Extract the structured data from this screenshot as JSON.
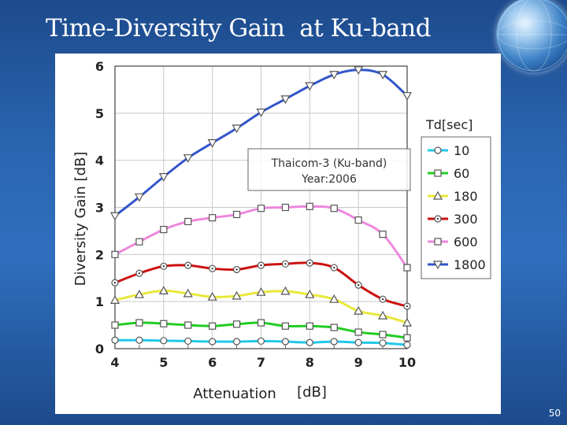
{
  "slide": {
    "title": "Time-Diversity Gain  at Ku-band",
    "page_number": "50"
  },
  "colors": {
    "background": "#2a65b0",
    "title_text": "#ffffff"
  },
  "chart_data": {
    "type": "line",
    "xlabel": "Attenuation",
    "xunit": "[dB]",
    "ylabel": "Diversity Gain  [dB]",
    "xlim": [
      4,
      10
    ],
    "ylim": [
      0,
      6
    ],
    "xticks": [
      4,
      5,
      6,
      7,
      8,
      9,
      10
    ],
    "yticks": [
      0,
      1,
      2,
      3,
      4,
      5,
      6
    ],
    "grid": true,
    "annotation": [
      "Thaicom-3 (Ku-band)",
      "Year:2006"
    ],
    "legend_title": "Td[sec]",
    "legend_position": "right",
    "x": [
      4,
      4.5,
      5,
      5.5,
      6,
      6.5,
      7,
      7.5,
      8,
      8.5,
      9,
      9.5,
      10
    ],
    "series": [
      {
        "name": "10",
        "color": "#22c8e8",
        "marker": "circle",
        "values": [
          0.18,
          0.18,
          0.17,
          0.16,
          0.15,
          0.15,
          0.16,
          0.15,
          0.13,
          0.15,
          0.13,
          0.12,
          0.08
        ]
      },
      {
        "name": "60",
        "color": "#22cc22",
        "marker": "square",
        "values": [
          0.5,
          0.55,
          0.53,
          0.5,
          0.48,
          0.52,
          0.55,
          0.48,
          0.48,
          0.45,
          0.35,
          0.3,
          0.23
        ]
      },
      {
        "name": "180",
        "color": "#e8e83a",
        "marker": "triangle-up",
        "values": [
          1.03,
          1.15,
          1.23,
          1.17,
          1.1,
          1.12,
          1.2,
          1.22,
          1.15,
          1.05,
          0.8,
          0.7,
          0.55
        ]
      },
      {
        "name": "300",
        "color": "#cc1111",
        "marker": "circle-dot",
        "values": [
          1.4,
          1.6,
          1.75,
          1.77,
          1.7,
          1.68,
          1.77,
          1.8,
          1.82,
          1.72,
          1.35,
          1.05,
          0.9
        ]
      },
      {
        "name": "600",
        "color": "#ee88dd",
        "marker": "square",
        "values": [
          2.0,
          2.27,
          2.53,
          2.7,
          2.78,
          2.85,
          2.98,
          3.0,
          3.02,
          2.98,
          2.73,
          2.43,
          1.72
        ]
      },
      {
        "name": "1800",
        "color": "#3355cc",
        "marker": "triangle-down",
        "values": [
          2.82,
          3.22,
          3.65,
          4.05,
          4.37,
          4.68,
          5.02,
          5.3,
          5.58,
          5.82,
          5.92,
          5.82,
          5.37
        ]
      }
    ]
  }
}
